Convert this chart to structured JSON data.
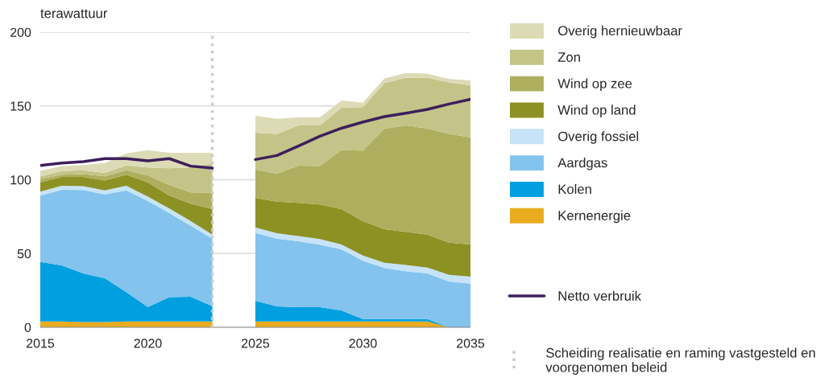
{
  "chart_data": {
    "type": "area",
    "stacked": true,
    "ylabel": "terawattuur",
    "x": [
      2015,
      2016,
      2017,
      2018,
      2019,
      2020,
      2021,
      2022,
      2023,
      2024,
      2025,
      2026,
      2027,
      2028,
      2029,
      2030,
      2031,
      2032,
      2033,
      2034,
      2035
    ],
    "xlim": [
      2015,
      2035
    ],
    "xticks": [
      2015,
      2020,
      2025,
      2030,
      2035
    ],
    "ylim": [
      0,
      200
    ],
    "yticks": [
      0,
      50,
      100,
      150,
      200
    ],
    "grid": "y",
    "legend": "right",
    "series": [
      {
        "name": "Kernenergie",
        "color": "#e8ac1e",
        "values": [
          4,
          4,
          3.5,
          3.5,
          4,
          4,
          4,
          4,
          4,
          null,
          4,
          4,
          4,
          4,
          4,
          4,
          4,
          4,
          4,
          0,
          0
        ]
      },
      {
        "name": "Kolen",
        "color": "#009fdf",
        "values": [
          40.3,
          38,
          33,
          29.7,
          19.8,
          9.8,
          16.5,
          16.7,
          10.3,
          null,
          14,
          10.2,
          9.6,
          9.6,
          7.4,
          1.6,
          1.6,
          1.6,
          1.6,
          0,
          0
        ]
      },
      {
        "name": "Aardgas",
        "color": "#83c3ee",
        "values": [
          44.9,
          51.2,
          56.5,
          56.8,
          69,
          71.8,
          56.9,
          48.1,
          45.8,
          null,
          46.1,
          45.9,
          44.7,
          42.4,
          41.5,
          39.5,
          34.6,
          32.4,
          30.9,
          31.1,
          29.6
        ]
      },
      {
        "name": "Overig fossiel",
        "color": "#c6e3f7",
        "values": [
          2.7,
          2.7,
          2.6,
          2.8,
          3.1,
          3,
          3.1,
          3.1,
          2.7,
          null,
          3.6,
          3.7,
          3.6,
          3.8,
          3.2,
          3.6,
          3.6,
          4.3,
          4,
          4.5,
          4.7
        ]
      },
      {
        "name": "Wind op land",
        "color": "#8c9124",
        "values": [
          6.3,
          6,
          6.3,
          6.7,
          7.5,
          9.6,
          8.7,
          11.9,
          17.3,
          null,
          20,
          21.4,
          22.4,
          23.4,
          24,
          23.2,
          22.7,
          22.4,
          22.3,
          21.8,
          21.8
        ]
      },
      {
        "name": "Wind op zee",
        "color": "#adaf5e",
        "values": [
          2.2,
          1.5,
          1.9,
          2.8,
          3,
          4.6,
          7.3,
          7.6,
          10.9,
          null,
          19.3,
          18.9,
          25.2,
          26,
          39.9,
          47.8,
          68.1,
          72.1,
          71.8,
          73.6,
          72.7
        ]
      },
      {
        "name": "Zon",
        "color": "#c4c488",
        "values": [
          1.9,
          2.5,
          2.6,
          2.3,
          3.3,
          5.5,
          11.2,
          16.9,
          20,
          null,
          24.9,
          26.9,
          27.3,
          27.6,
          28.8,
          29.5,
          30.9,
          32.3,
          34.5,
          34.9,
          35.2
        ]
      },
      {
        "name": "Overig hernieuwbaar",
        "color": "#dcdbb6",
        "values": [
          3.7,
          3.3,
          3.6,
          6.7,
          8.2,
          11.7,
          10.6,
          10,
          7.3,
          null,
          11.4,
          10.3,
          5.4,
          5.4,
          4.9,
          3,
          3.2,
          3.3,
          2.7,
          2.3,
          3.3
        ]
      },
      {
        "name": "Netto verbruik",
        "type": "line",
        "color": "#3e1f5c",
        "values": [
          109.7,
          111.3,
          112.3,
          114.3,
          114.3,
          112.8,
          114.3,
          109.2,
          107.9,
          null,
          113.7,
          116.4,
          122.8,
          129.5,
          134.9,
          139.1,
          142.8,
          145.1,
          147.7,
          151.3,
          154.5
        ]
      }
    ],
    "ref_lines": [
      {
        "axis": "x",
        "value": 2023,
        "label": "Scheiding realisatie en raming vastgesteld en voorgenomen beleid",
        "color": "#cccccc",
        "line_style": "dotted"
      }
    ]
  }
}
